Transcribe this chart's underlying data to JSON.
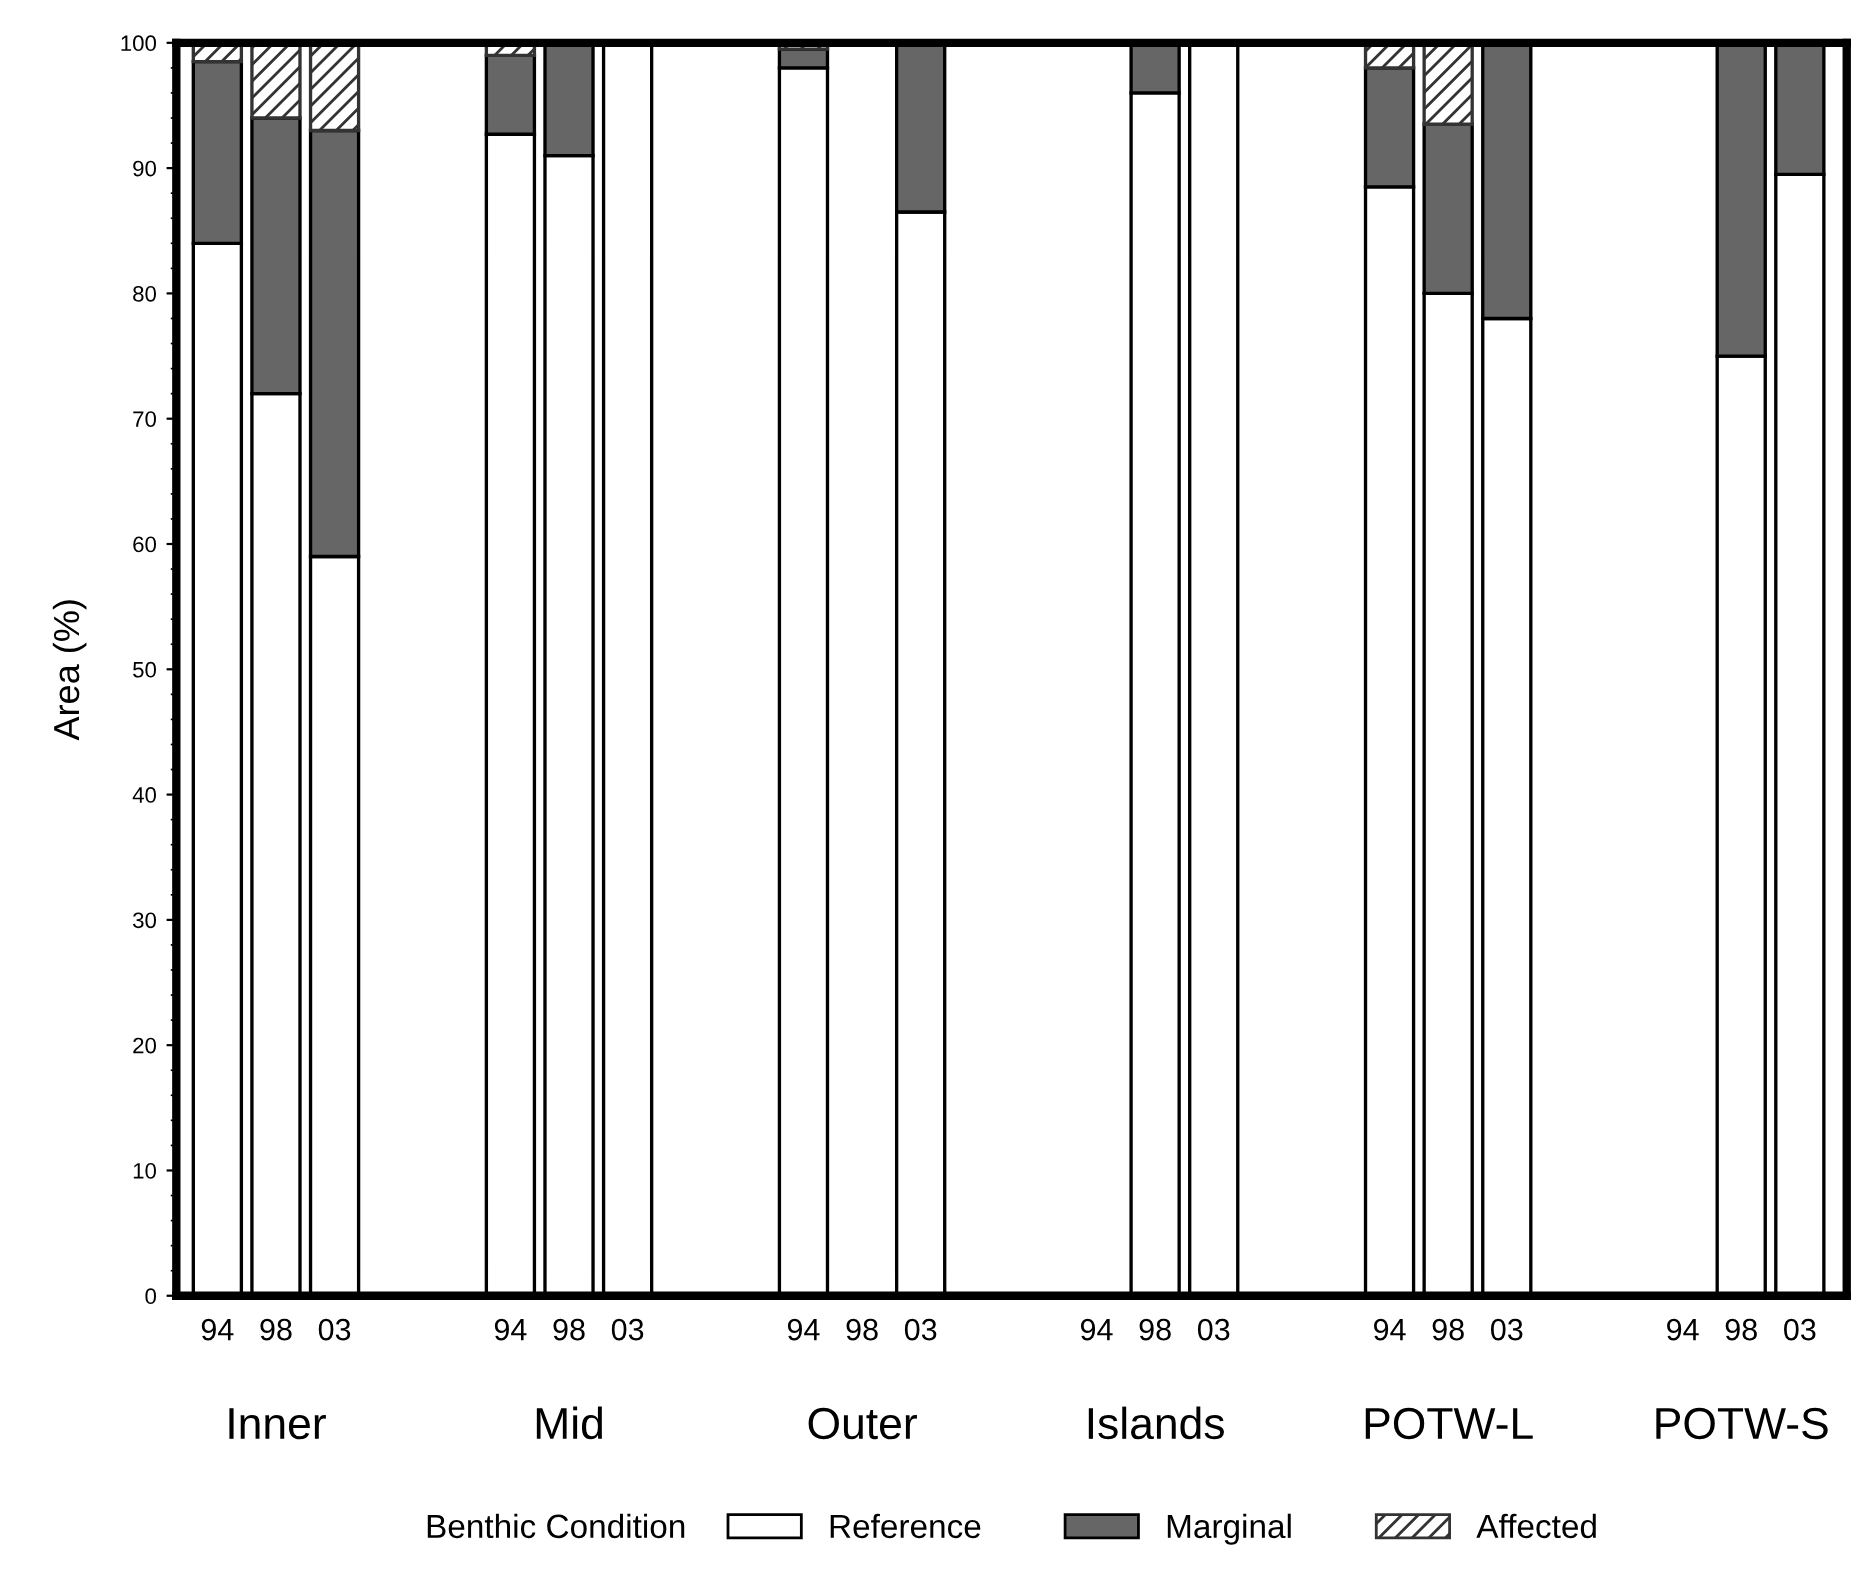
{
  "chart_data": {
    "type": "bar",
    "stacked": true,
    "ylabel": "Area (%)",
    "legend_title": "Benthic Condition",
    "legend": "bottom",
    "categories": [
      "94",
      "98",
      "03",
      null,
      null,
      "94",
      "98",
      "03",
      null,
      null,
      "94",
      "98",
      "03",
      null,
      null,
      "94",
      "98",
      "03",
      null,
      null,
      "94",
      "98",
      "03",
      null,
      null,
      "94",
      "98",
      "03"
    ],
    "annotations": [
      "Inner",
      "Mid",
      "Outer",
      "Islands",
      "POTW-L",
      "POTW-S"
    ],
    "ylim": [
      0,
      100
    ],
    "yticks": [
      0,
      10,
      20,
      30,
      40,
      50,
      60,
      70,
      80,
      90,
      100
    ],
    "series": [
      {
        "name": "Reference",
        "color": "#ffffff",
        "values": [
          84,
          72,
          59,
          null,
          null,
          92.7,
          91,
          100,
          null,
          null,
          98,
          null,
          86.5,
          null,
          null,
          null,
          96,
          100,
          null,
          null,
          88.5,
          80,
          78,
          null,
          null,
          null,
          75,
          89.5
        ]
      },
      {
        "name": "Marginal",
        "color": "#666666",
        "values": [
          14.5,
          22,
          34,
          null,
          null,
          6.3,
          9,
          null,
          null,
          null,
          1.5,
          null,
          13.5,
          null,
          null,
          null,
          4,
          null,
          null,
          null,
          9.5,
          13.5,
          22,
          null,
          null,
          null,
          25,
          10.5
        ]
      },
      {
        "name": "Affected",
        "color": "#333333",
        "values": [
          1.5,
          6,
          7,
          null,
          null,
          1,
          null,
          null,
          null,
          null,
          0.5,
          null,
          null,
          null,
          null,
          null,
          null,
          null,
          null,
          null,
          2,
          6.5,
          null,
          null,
          null,
          null,
          null,
          null
        ]
      }
    ]
  }
}
